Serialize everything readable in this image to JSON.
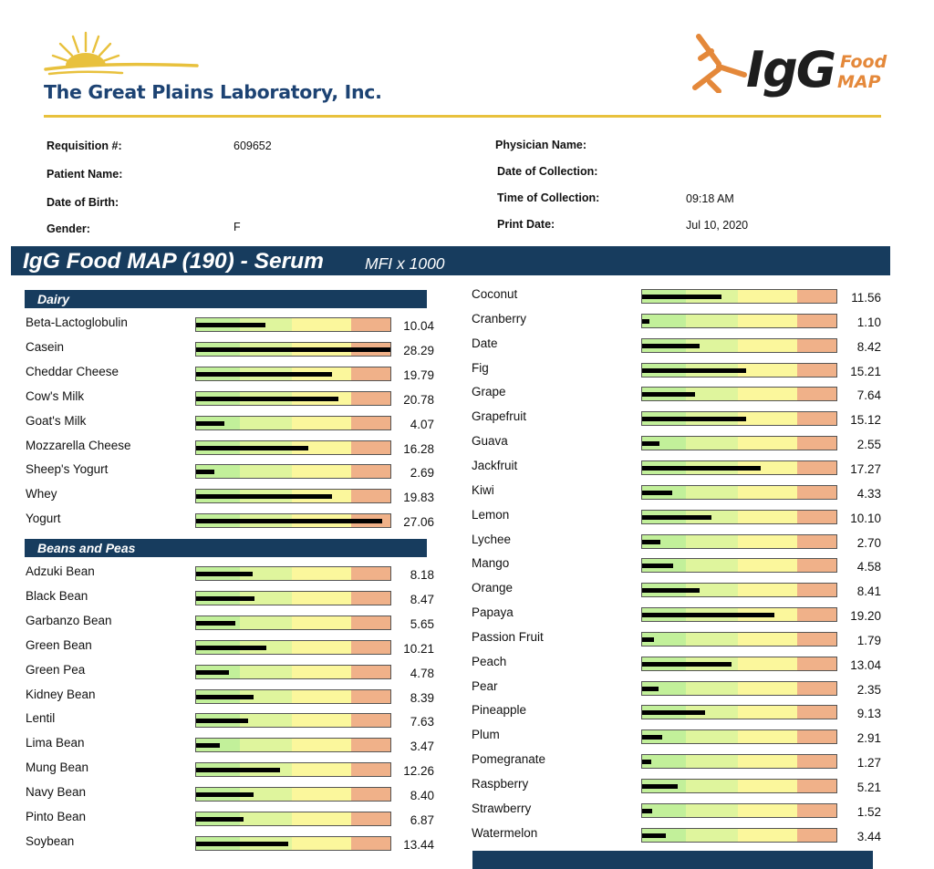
{
  "header": {
    "lab_name": "The Great Plains Laboratory, Inc.",
    "product_logo": {
      "main": "IgG",
      "sub1": "Food",
      "sub2": "MAP"
    },
    "colors": {
      "brand_navy": "#173c5e",
      "gold": "#e8c13d",
      "orange": "#e4883a"
    }
  },
  "patient_info": {
    "requisition_label": "Requisition #:",
    "requisition_value": "609652",
    "patient_name_label": "Patient Name:",
    "patient_name_value": "",
    "dob_label": "Date of Birth:",
    "dob_value": "",
    "gender_label": "Gender:",
    "gender_value": "F",
    "physician_label": "Physician Name:",
    "physician_value": "",
    "collection_date_label": "Date of Collection:",
    "collection_date_value": "",
    "collection_time_label": "Time of Collection:",
    "collection_time_value": "09:18 AM",
    "print_date_label": "Print Date:",
    "print_date_value": "Jul 10, 2020"
  },
  "report": {
    "title": "IgG Food MAP (190) - Serum",
    "unit": "MFI x 1000",
    "scale_max": 28.3,
    "zone_colors": [
      "#c2f09a",
      "#dff59d",
      "#fbf79c",
      "#f0b189"
    ]
  },
  "left_categories": [
    {
      "name": "Dairy",
      "items": [
        {
          "food": "Beta-Lactoglobulin",
          "value": 10.04
        },
        {
          "food": "Casein",
          "value": 28.29
        },
        {
          "food": "Cheddar Cheese",
          "value": 19.79
        },
        {
          "food": "Cow's Milk",
          "value": 20.78
        },
        {
          "food": "Goat's Milk",
          "value": 4.07
        },
        {
          "food": "Mozzarella Cheese",
          "value": 16.28
        },
        {
          "food": "Sheep's Yogurt",
          "value": 2.69
        },
        {
          "food": "Whey",
          "value": 19.83
        },
        {
          "food": "Yogurt",
          "value": 27.06
        }
      ]
    },
    {
      "name": "Beans and Peas",
      "items": [
        {
          "food": "Adzuki Bean",
          "value": 8.18
        },
        {
          "food": "Black Bean",
          "value": 8.47
        },
        {
          "food": "Garbanzo Bean",
          "value": 5.65
        },
        {
          "food": "Green Bean",
          "value": 10.21
        },
        {
          "food": "Green Pea",
          "value": 4.78
        },
        {
          "food": "Kidney Bean",
          "value": 8.39
        },
        {
          "food": "Lentil",
          "value": 7.63
        },
        {
          "food": "Lima Bean",
          "value": 3.47
        },
        {
          "food": "Mung Bean",
          "value": 12.26
        },
        {
          "food": "Navy Bean",
          "value": 8.4
        },
        {
          "food": "Pinto Bean",
          "value": 6.87
        },
        {
          "food": "Soybean",
          "value": 13.44
        }
      ]
    }
  ],
  "right_items": [
    {
      "food": "Coconut",
      "value": 11.56
    },
    {
      "food": "Cranberry",
      "value": 1.1
    },
    {
      "food": "Date",
      "value": 8.42
    },
    {
      "food": "Fig",
      "value": 15.21
    },
    {
      "food": "Grape",
      "value": 7.64
    },
    {
      "food": "Grapefruit",
      "value": 15.12
    },
    {
      "food": "Guava",
      "value": 2.55
    },
    {
      "food": "Jackfruit",
      "value": 17.27
    },
    {
      "food": "Kiwi",
      "value": 4.33
    },
    {
      "food": "Lemon",
      "value": 10.1
    },
    {
      "food": "Lychee",
      "value": 2.7
    },
    {
      "food": "Mango",
      "value": 4.58
    },
    {
      "food": "Orange",
      "value": 8.41
    },
    {
      "food": "Papaya",
      "value": 19.2
    },
    {
      "food": "Passion Fruit",
      "value": 1.79
    },
    {
      "food": "Peach",
      "value": 13.04
    },
    {
      "food": "Pear",
      "value": 2.35
    },
    {
      "food": "Pineapple",
      "value": 9.13
    },
    {
      "food": "Plum",
      "value": 2.91
    },
    {
      "food": "Pomegranate",
      "value": 1.27
    },
    {
      "food": "Raspberry",
      "value": 5.21
    },
    {
      "food": "Strawberry",
      "value": 1.52
    },
    {
      "food": "Watermelon",
      "value": 3.44
    }
  ]
}
